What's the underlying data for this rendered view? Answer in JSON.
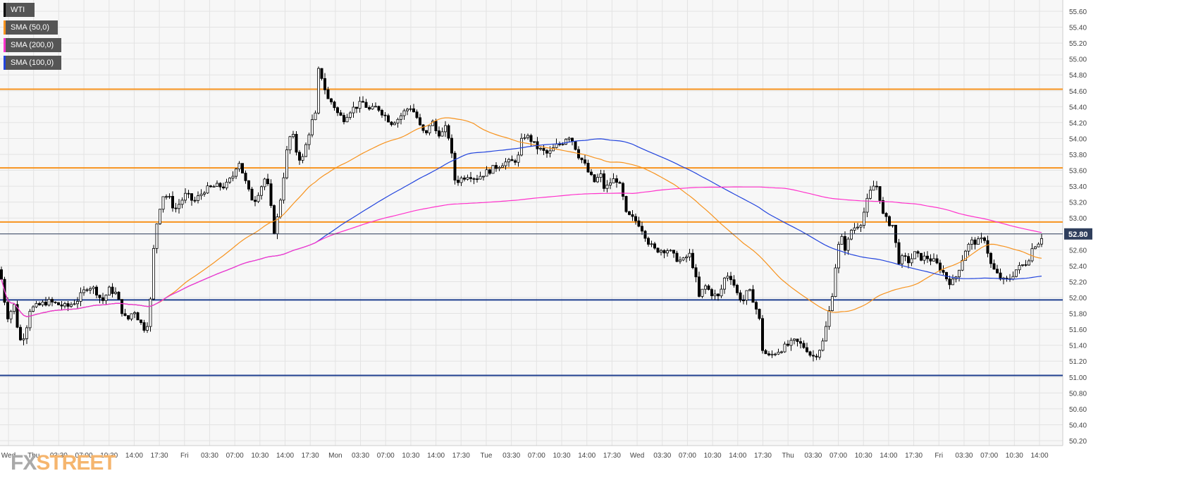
{
  "chart_data": {
    "type": "candlestick",
    "symbol": "WTI",
    "legend": [
      {
        "label": "WTI",
        "color": "#000000"
      },
      {
        "label": "SMA (50,0)",
        "color": "#f7931e"
      },
      {
        "label": "SMA (200,0)",
        "color": "#ff33cc"
      },
      {
        "label": "SMA (100,0)",
        "color": "#2244dd"
      }
    ],
    "y_axis": {
      "min": 50.2,
      "max": 55.6,
      "ticks": [
        "55.60",
        "55.40",
        "55.20",
        "55.00",
        "54.80",
        "54.60",
        "54.40",
        "54.20",
        "54.00",
        "53.80",
        "53.60",
        "53.40",
        "53.20",
        "53.00",
        "52.80",
        "52.60",
        "52.40",
        "52.20",
        "52.00",
        "51.80",
        "51.60",
        "51.40",
        "51.20",
        "51.00",
        "50.80",
        "50.60",
        "50.40",
        "50.20"
      ]
    },
    "x_axis": {
      "labels": [
        "Wed",
        "Thu",
        "03:30",
        "07:00",
        "10:30",
        "14:00",
        "17:30",
        "Fri",
        "03:30",
        "07:00",
        "10:30",
        "14:00",
        "17:30",
        "Mon",
        "03:30",
        "07:00",
        "10:30",
        "14:00",
        "17:30",
        "Tue",
        "03:30",
        "07:00",
        "10:30",
        "14:00",
        "17:30",
        "Wed",
        "03:30",
        "07:00",
        "10:30",
        "14:00",
        "17:30",
        "Thu",
        "03:30",
        "07:00",
        "10:30",
        "14:00",
        "17:30",
        "Fri",
        "03:30",
        "07:00",
        "10:30",
        "14:00"
      ]
    },
    "current_price": "52.80",
    "horizontal_levels": [
      {
        "value": 54.62,
        "color": "#f7931e"
      },
      {
        "value": 53.63,
        "color": "#f7931e"
      },
      {
        "value": 52.95,
        "color": "#f7931e"
      },
      {
        "value": 51.97,
        "color": "#1f3f8f"
      },
      {
        "value": 51.02,
        "color": "#1f3f8f"
      }
    ],
    "price_path": [
      [
        0,
        52.35
      ],
      [
        10,
        51.75
      ],
      [
        20,
        51.9
      ],
      [
        28,
        51.45
      ],
      [
        36,
        51.55
      ],
      [
        42,
        51.85
      ],
      [
        55,
        51.9
      ],
      [
        68,
        51.95
      ],
      [
        80,
        51.92
      ],
      [
        95,
        51.88
      ],
      [
        110,
        51.97
      ],
      [
        125,
        52.15
      ],
      [
        135,
        52.1
      ],
      [
        145,
        51.95
      ],
      [
        155,
        52.1
      ],
      [
        165,
        52.05
      ],
      [
        172,
        51.85
      ],
      [
        180,
        51.7
      ],
      [
        190,
        51.85
      ],
      [
        198,
        51.7
      ],
      [
        206,
        51.6
      ],
      [
        212,
        51.75
      ],
      [
        218,
        52.6
      ],
      [
        224,
        53.05
      ],
      [
        232,
        53.3
      ],
      [
        240,
        53.25
      ],
      [
        248,
        53.1
      ],
      [
        256,
        53.2
      ],
      [
        264,
        53.3
      ],
      [
        275,
        53.2
      ],
      [
        290,
        53.35
      ],
      [
        305,
        53.4
      ],
      [
        320,
        53.4
      ],
      [
        332,
        53.55
      ],
      [
        338,
        53.75
      ],
      [
        345,
        53.55
      ],
      [
        352,
        53.35
      ],
      [
        360,
        53.2
      ],
      [
        368,
        53.35
      ],
      [
        376,
        53.5
      ],
      [
        382,
        53.35
      ],
      [
        388,
        52.8
      ],
      [
        395,
        53.05
      ],
      [
        402,
        53.5
      ],
      [
        408,
        53.9
      ],
      [
        414,
        54.1
      ],
      [
        420,
        53.85
      ],
      [
        428,
        53.7
      ],
      [
        435,
        53.95
      ],
      [
        442,
        54.2
      ],
      [
        448,
        54.3
      ],
      [
        452,
        54.85
      ],
      [
        458,
        54.75
      ],
      [
        464,
        54.5
      ],
      [
        472,
        54.45
      ],
      [
        480,
        54.3
      ],
      [
        488,
        54.25
      ],
      [
        496,
        54.35
      ],
      [
        505,
        54.4
      ],
      [
        515,
        54.45
      ],
      [
        525,
        54.35
      ],
      [
        535,
        54.4
      ],
      [
        545,
        54.3
      ],
      [
        555,
        54.2
      ],
      [
        565,
        54.25
      ],
      [
        575,
        54.35
      ],
      [
        582,
        54.4
      ],
      [
        590,
        54.3
      ],
      [
        598,
        54.1
      ],
      [
        605,
        54.05
      ],
      [
        612,
        54.25
      ],
      [
        618,
        54.1
      ],
      [
        626,
        54.05
      ],
      [
        634,
        54.15
      ],
      [
        640,
        53.85
      ],
      [
        646,
        53.45
      ],
      [
        655,
        53.5
      ],
      [
        665,
        53.55
      ],
      [
        675,
        53.5
      ],
      [
        685,
        53.55
      ],
      [
        695,
        53.6
      ],
      [
        705,
        53.65
      ],
      [
        715,
        53.7
      ],
      [
        725,
        53.7
      ],
      [
        735,
        53.75
      ],
      [
        742,
        54.05
      ],
      [
        752,
        54.0
      ],
      [
        760,
        53.9
      ],
      [
        768,
        53.85
      ],
      [
        778,
        53.8
      ],
      [
        788,
        53.9
      ],
      [
        798,
        53.95
      ],
      [
        806,
        54.05
      ],
      [
        814,
        53.95
      ],
      [
        820,
        53.8
      ],
      [
        828,
        53.7
      ],
      [
        836,
        53.55
      ],
      [
        844,
        53.45
      ],
      [
        852,
        53.55
      ],
      [
        858,
        53.35
      ],
      [
        866,
        53.45
      ],
      [
        874,
        53.5
      ],
      [
        882,
        53.35
      ],
      [
        888,
        53.05
      ],
      [
        896,
        53.0
      ],
      [
        905,
        52.95
      ],
      [
        912,
        52.85
      ],
      [
        920,
        52.7
      ],
      [
        928,
        52.6
      ],
      [
        938,
        52.6
      ],
      [
        948,
        52.6
      ],
      [
        958,
        52.5
      ],
      [
        968,
        52.45
      ],
      [
        978,
        52.55
      ],
      [
        985,
        52.35
      ],
      [
        992,
        52.0
      ],
      [
        1000,
        52.15
      ],
      [
        1010,
        52.05
      ],
      [
        1020,
        52.0
      ],
      [
        1030,
        52.3
      ],
      [
        1038,
        52.25
      ],
      [
        1046,
        52.05
      ],
      [
        1054,
        51.95
      ],
      [
        1062,
        52.1
      ],
      [
        1070,
        51.95
      ],
      [
        1078,
        51.7
      ],
      [
        1082,
        51.35
      ],
      [
        1090,
        51.25
      ],
      [
        1098,
        51.3
      ],
      [
        1108,
        51.35
      ],
      [
        1118,
        51.4
      ],
      [
        1128,
        51.45
      ],
      [
        1138,
        51.4
      ],
      [
        1145,
        51.35
      ],
      [
        1152,
        51.25
      ],
      [
        1160,
        51.3
      ],
      [
        1168,
        51.45
      ],
      [
        1176,
        51.8
      ],
      [
        1182,
        52.1
      ],
      [
        1188,
        52.6
      ],
      [
        1194,
        52.75
      ],
      [
        1200,
        52.6
      ],
      [
        1208,
        52.85
      ],
      [
        1215,
        52.9
      ],
      [
        1222,
        52.95
      ],
      [
        1230,
        53.2
      ],
      [
        1238,
        53.4
      ],
      [
        1246,
        53.4
      ],
      [
        1252,
        53.05
      ],
      [
        1260,
        52.95
      ],
      [
        1268,
        52.9
      ],
      [
        1274,
        52.45
      ],
      [
        1282,
        52.5
      ],
      [
        1290,
        52.45
      ],
      [
        1298,
        52.55
      ],
      [
        1306,
        52.5
      ],
      [
        1316,
        52.5
      ],
      [
        1326,
        52.45
      ],
      [
        1336,
        52.35
      ],
      [
        1346,
        52.2
      ],
      [
        1354,
        52.2
      ],
      [
        1362,
        52.4
      ],
      [
        1370,
        52.6
      ],
      [
        1378,
        52.7
      ],
      [
        1388,
        52.7
      ],
      [
        1398,
        52.75
      ],
      [
        1404,
        52.45
      ],
      [
        1410,
        52.35
      ],
      [
        1418,
        52.25
      ],
      [
        1426,
        52.2
      ],
      [
        1434,
        52.25
      ],
      [
        1442,
        52.35
      ],
      [
        1450,
        52.4
      ],
      [
        1458,
        52.45
      ],
      [
        1466,
        52.65
      ],
      [
        1474,
        52.7
      ],
      [
        1480,
        52.8
      ]
    ]
  },
  "brand": {
    "fx": "FX",
    "street": "STREET"
  }
}
